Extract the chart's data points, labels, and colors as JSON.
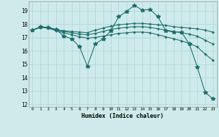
{
  "title": "",
  "xlabel": "Humidex (Indice chaleur)",
  "xlim": [
    -0.5,
    23.5
  ],
  "ylim": [
    11.8,
    19.7
  ],
  "yticks": [
    12,
    13,
    14,
    15,
    16,
    17,
    18,
    19
  ],
  "xticks": [
    0,
    1,
    2,
    3,
    4,
    5,
    6,
    7,
    8,
    9,
    10,
    11,
    12,
    13,
    14,
    15,
    16,
    17,
    18,
    19,
    20,
    21,
    22,
    23
  ],
  "bg_color": "#ceeaea",
  "grid_color": "#b0d8d8",
  "line_color": "#1a6e6e",
  "lines": [
    {
      "x": [
        0,
        1,
        2,
        3,
        4,
        5,
        6,
        7,
        8,
        9,
        10,
        11,
        12,
        13,
        14,
        15,
        16,
        17,
        18,
        19,
        20,
        21,
        22,
        23
      ],
      "y": [
        17.55,
        17.8,
        17.75,
        17.6,
        17.1,
        16.9,
        16.3,
        14.85,
        16.5,
        16.9,
        17.5,
        18.55,
        18.95,
        19.4,
        19.05,
        19.1,
        18.55,
        17.5,
        17.4,
        17.4,
        16.5,
        14.8,
        12.9,
        12.4
      ],
      "marker": "*",
      "ms": 4
    },
    {
      "x": [
        0,
        1,
        2,
        3,
        4,
        5,
        6,
        7,
        8,
        9,
        10,
        11,
        12,
        13,
        14,
        15,
        16,
        17,
        18,
        19,
        20,
        21,
        22,
        23
      ],
      "y": [
        17.55,
        17.75,
        17.75,
        17.6,
        17.5,
        17.45,
        17.4,
        17.35,
        17.55,
        17.7,
        17.85,
        17.95,
        18.0,
        18.05,
        18.05,
        18.0,
        17.95,
        17.9,
        17.8,
        17.75,
        17.7,
        17.65,
        17.55,
        17.4
      ],
      "marker": "+",
      "ms": 3
    },
    {
      "x": [
        0,
        1,
        2,
        3,
        4,
        5,
        6,
        7,
        8,
        9,
        10,
        11,
        12,
        13,
        14,
        15,
        16,
        17,
        18,
        19,
        20,
        21,
        22,
        23
      ],
      "y": [
        17.55,
        17.75,
        17.75,
        17.55,
        17.45,
        17.35,
        17.25,
        17.2,
        17.3,
        17.45,
        17.6,
        17.7,
        17.75,
        17.8,
        17.8,
        17.75,
        17.65,
        17.55,
        17.45,
        17.35,
        17.25,
        17.1,
        16.8,
        16.5
      ],
      "marker": "+",
      "ms": 3
    },
    {
      "x": [
        0,
        1,
        2,
        3,
        4,
        5,
        6,
        7,
        8,
        9,
        10,
        11,
        12,
        13,
        14,
        15,
        16,
        17,
        18,
        19,
        20,
        21,
        22,
        23
      ],
      "y": [
        17.55,
        17.75,
        17.7,
        17.5,
        17.35,
        17.2,
        17.05,
        16.95,
        17.0,
        17.1,
        17.2,
        17.3,
        17.35,
        17.4,
        17.4,
        17.35,
        17.2,
        17.05,
        16.9,
        16.75,
        16.55,
        16.3,
        15.75,
        15.3
      ],
      "marker": "+",
      "ms": 3
    }
  ]
}
